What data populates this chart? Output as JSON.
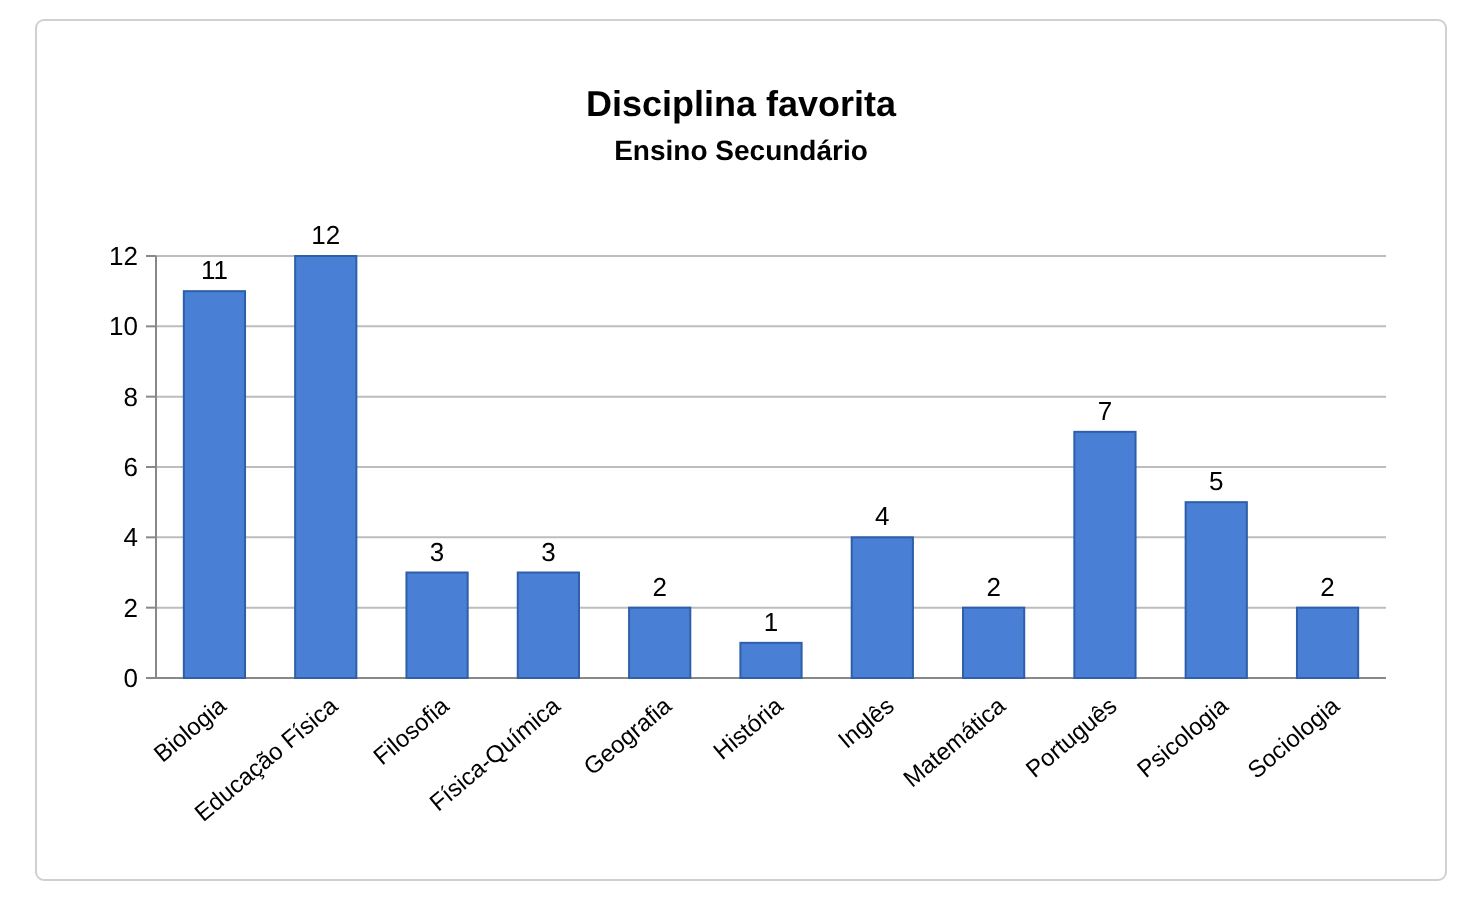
{
  "chart_data": {
    "type": "bar",
    "title": "Disciplina favorita",
    "subtitle": "Ensino Secundário",
    "categories": [
      "Biologia",
      "Educação Física",
      "Filosofia",
      "Física-Química",
      "Geografia",
      "História",
      "Inglês",
      "Matemática",
      "Português",
      "Psicologia",
      "Sociologia"
    ],
    "values": [
      11,
      12,
      3,
      3,
      2,
      1,
      4,
      2,
      7,
      5,
      2
    ],
    "color": "#4a7fd6",
    "ylim": [
      0,
      12
    ],
    "yticks": [
      0,
      2,
      4,
      6,
      8,
      10,
      12
    ],
    "grid": "y",
    "data_labels": true
  }
}
